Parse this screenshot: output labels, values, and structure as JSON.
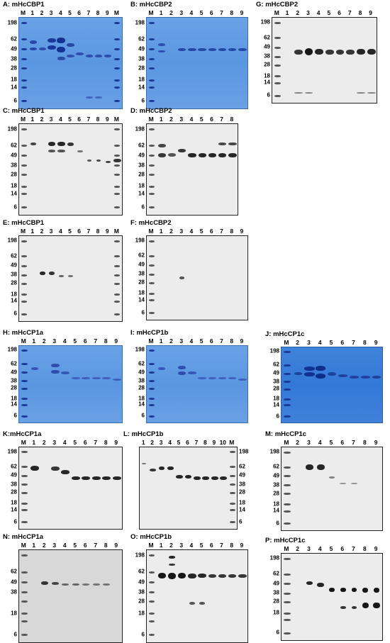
{
  "panels": [
    {
      "id": "A",
      "title": "A: mHcCBP1",
      "type": "coom",
      "lanes": [
        "M",
        "1",
        "2",
        "3",
        "4",
        "5",
        "6",
        "7",
        "8",
        "9",
        "M"
      ],
      "mw_left": [
        "198",
        "62",
        "49",
        "38",
        "28",
        "18",
        "14",
        "6"
      ],
      "mw_right": []
    },
    {
      "id": "B",
      "title": "B: mHcCBP2",
      "type": "coom",
      "lanes": [
        "M",
        "1",
        "2",
        "3",
        "4",
        "5",
        "6",
        "7",
        "8",
        "9"
      ],
      "mw_left": [
        "198",
        "62",
        "49",
        "38",
        "28",
        "18",
        "14",
        "6"
      ],
      "mw_right": []
    },
    {
      "id": "G",
      "title": "G: mHcCBP2",
      "type": "blot",
      "lanes": [
        "M",
        "1",
        "2",
        "3",
        "4",
        "5",
        "6",
        "7",
        "8",
        "9"
      ],
      "mw_left": [
        "198",
        "62",
        "49",
        "38",
        "28",
        "18",
        "14",
        "6"
      ],
      "mw_right": []
    },
    {
      "id": "C",
      "title": "C: mHcCBP1",
      "type": "blot",
      "lanes": [
        "M",
        "1",
        "2",
        "3",
        "4",
        "5",
        "6",
        "7",
        "8",
        "9",
        "M"
      ],
      "mw_left": [
        "198",
        "62",
        "49",
        "38",
        "28",
        "18",
        "14",
        "6"
      ],
      "mw_right": []
    },
    {
      "id": "D",
      "title": "D: mHcCBP2",
      "type": "blot",
      "lanes": [
        "M",
        "1",
        "2",
        "3",
        "4",
        "5",
        "6",
        "7",
        "8"
      ],
      "mw_left": [
        "198",
        "62",
        "49",
        "38",
        "28",
        "18",
        "14",
        "6"
      ],
      "mw_right": []
    },
    {
      "id": "E",
      "title": "E: mHcCBP1",
      "type": "blot",
      "lanes": [
        "M",
        "1",
        "2",
        "3",
        "4",
        "5",
        "6",
        "7",
        "8",
        "9",
        "M"
      ],
      "mw_left": [
        "198",
        "62",
        "49",
        "38",
        "28",
        "18",
        "14",
        "6"
      ],
      "mw_right": []
    },
    {
      "id": "F",
      "title": "F: mHcCBP2",
      "type": "blot",
      "lanes": [
        "M",
        "1",
        "2",
        "3",
        "4",
        "5",
        "6",
        "7",
        "8",
        "9"
      ],
      "mw_left": [
        "198",
        "62",
        "49",
        "38",
        "28",
        "18",
        "14",
        "6"
      ],
      "mw_right": []
    },
    {
      "id": "H",
      "title": "H: mHcCP1a",
      "type": "coom",
      "lanes": [
        "M",
        "1",
        "2",
        "3",
        "4",
        "5",
        "6",
        "7",
        "8",
        "9"
      ],
      "mw_left": [
        "198",
        "62",
        "49",
        "38",
        "28",
        "18",
        "14",
        "6"
      ],
      "mw_right": []
    },
    {
      "id": "I",
      "title": "I: mHcCP1b",
      "type": "coom",
      "lanes": [
        "M",
        "1",
        "2",
        "3",
        "4",
        "5",
        "6",
        "7",
        "8",
        "9"
      ],
      "mw_left": [
        "198",
        "62",
        "49",
        "38",
        "28",
        "18",
        "14",
        "6"
      ],
      "mw_right": []
    },
    {
      "id": "J",
      "title": "J: mHcCP1c",
      "type": "coom2",
      "lanes": [
        "M",
        "2",
        "3",
        "4",
        "5",
        "6",
        "7",
        "8",
        "9"
      ],
      "mw_left": [
        "198",
        "62",
        "49",
        "38",
        "28",
        "18",
        "14",
        "6"
      ],
      "mw_right": []
    },
    {
      "id": "K",
      "title": "K:mHcCP1a",
      "type": "blot",
      "lanes": [
        "M",
        "1",
        "2",
        "3",
        "4",
        "5",
        "6",
        "7",
        "8",
        "9"
      ],
      "mw_left": [
        "198",
        "62",
        "49",
        "38",
        "28",
        "18",
        "14",
        "6"
      ],
      "mw_right": []
    },
    {
      "id": "L",
      "title": "L: mHcCP1b",
      "type": "blot",
      "lanes": [
        "1",
        "2",
        "3",
        "4",
        "5",
        "6",
        "7",
        "8",
        "9",
        "10",
        "M"
      ],
      "mw_left": [],
      "mw_right": [
        "198",
        "62",
        "49",
        "38",
        "28",
        "18",
        "14",
        "6"
      ]
    },
    {
      "id": "M",
      "title": "M: mHcCP1c",
      "type": "blot",
      "lanes": [
        "M",
        "2",
        "3",
        "4",
        "5",
        "6",
        "7",
        "8",
        "9"
      ],
      "mw_left": [
        "198",
        "62",
        "49",
        "38",
        "28",
        "18",
        "14",
        "6"
      ],
      "mw_right": []
    },
    {
      "id": "N",
      "title": "N: mHcCP1a",
      "type": "blot2",
      "lanes": [
        "M",
        "1",
        "2",
        "3",
        "4",
        "5",
        "6",
        "7",
        "8",
        "9"
      ],
      "mw_left": [
        "62",
        "49",
        "38",
        "18",
        "6"
      ],
      "mw_right": []
    },
    {
      "id": "O",
      "title": "O: mHcCP1b",
      "type": "blot",
      "lanes": [
        "M",
        "1",
        "2",
        "3",
        "4",
        "5",
        "6",
        "7",
        "8",
        "9"
      ],
      "mw_left": [
        "198",
        "62",
        "49",
        "38",
        "28",
        "18",
        "6"
      ],
      "mw_right": []
    },
    {
      "id": "P",
      "title": "P: mHcCP1c",
      "type": "blot",
      "lanes": [
        "M",
        "2",
        "3",
        "4",
        "5",
        "6",
        "7",
        "8",
        "9"
      ],
      "mw_left": [
        "198",
        "62",
        "49",
        "38",
        "28",
        "18",
        "6"
      ],
      "mw_right": []
    }
  ]
}
